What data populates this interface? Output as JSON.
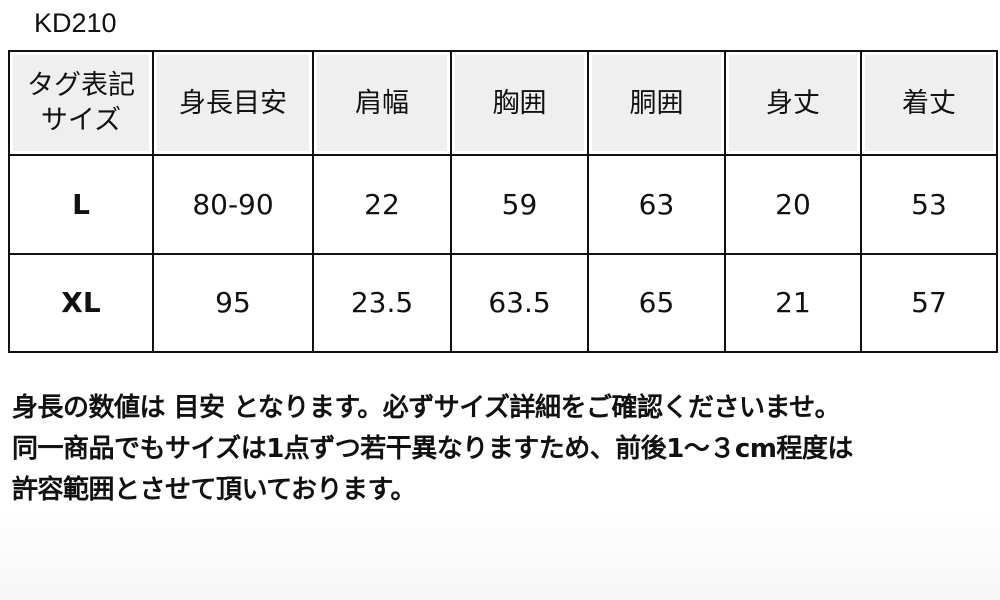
{
  "product_code": "KD210",
  "table": {
    "headers": [
      "タグ表記\nサイズ",
      "身長目安",
      "肩幅",
      "胸囲",
      "胴囲",
      "身丈",
      "着丈"
    ],
    "rows": [
      [
        "L",
        "80-90",
        "22",
        "59",
        "63",
        "20",
        "53"
      ],
      [
        "XL",
        "95",
        "23.5",
        "63.5",
        "65",
        "21",
        "57"
      ]
    ]
  },
  "notes": [
    "身長の数値は 目安 となります。必ずサイズ詳細をご確認くださいませ。",
    "同一商品でもサイズは1点ずつ若干異なりますため、前後1～３cm程度は",
    "許容範囲とさせて頂いております。"
  ]
}
